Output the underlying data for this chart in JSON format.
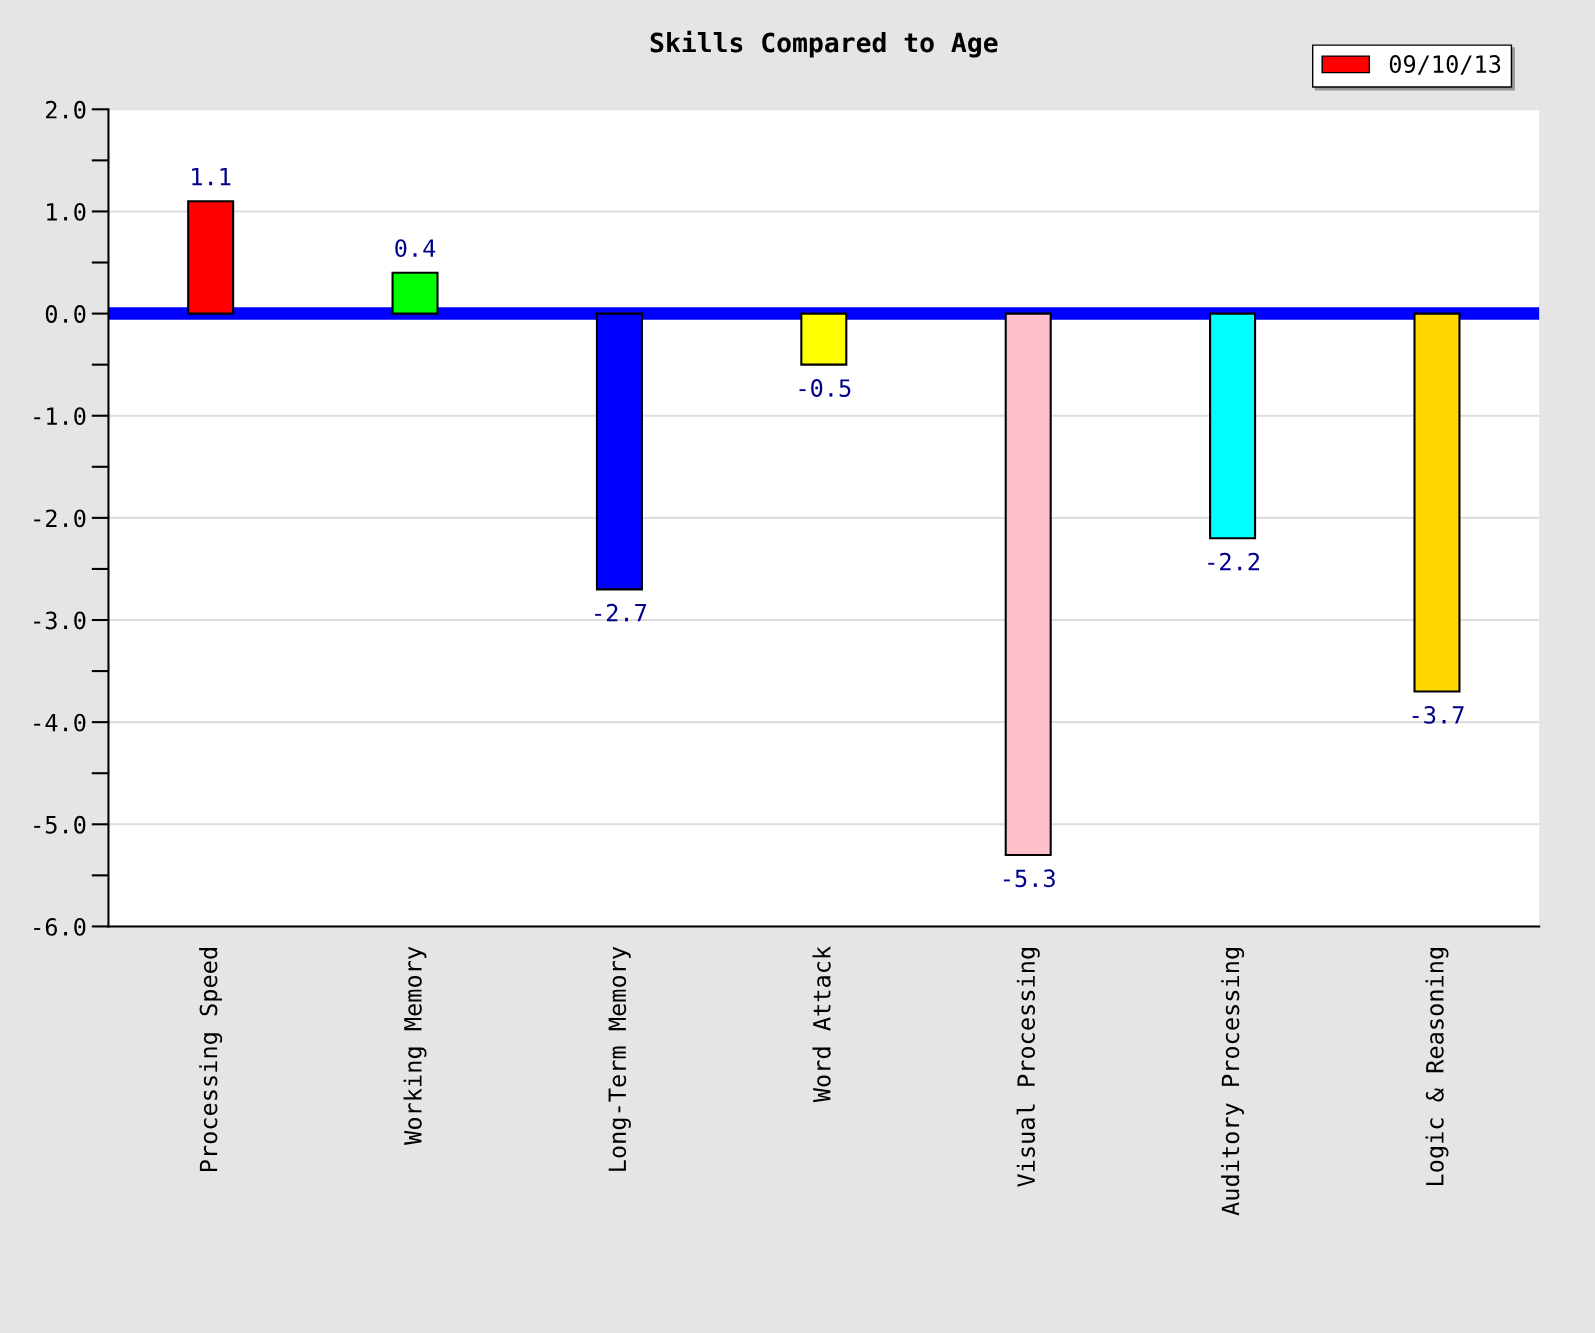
{
  "chart_data": {
    "type": "bar",
    "title": "Skills Compared to Age",
    "categories": [
      "Processing Speed",
      "Working Memory",
      "Long-Term Memory",
      "Word Attack",
      "Visual Processing",
      "Auditory Processing",
      "Logic & Reasoning"
    ],
    "series": [
      {
        "name": "09/10/13",
        "color": "#ff0000",
        "colors": [
          "#ff0000",
          "#00ff00",
          "#0000ff",
          "#ffff00",
          "#ffc0cb",
          "#00ffff",
          "#ffd700"
        ],
        "values": [
          1.1,
          0.4,
          -2.7,
          -0.5,
          -5.3,
          -2.2,
          -3.7
        ]
      }
    ],
    "ylim": [
      -6.0,
      2.0
    ],
    "yticks": [
      {
        "value": 2.0,
        "label": "2.0"
      },
      {
        "value": 1.0,
        "label": "1.0"
      },
      {
        "value": 0.0,
        "label": "0.0"
      },
      {
        "value": -1.0,
        "label": "-1.0"
      },
      {
        "value": -2.0,
        "label": "-2.0"
      },
      {
        "value": -3.0,
        "label": "-3.0"
      },
      {
        "value": -4.0,
        "label": "-4.0"
      },
      {
        "value": -5.0,
        "label": "-5.0"
      },
      {
        "value": -6.0,
        "label": "-6.0"
      }
    ],
    "ref_lines": [
      {
        "axis": "y",
        "value": 0.0,
        "label": null,
        "color": "#0000ff"
      }
    ],
    "grid": "y",
    "legend": "top right",
    "data_labels": true
  }
}
